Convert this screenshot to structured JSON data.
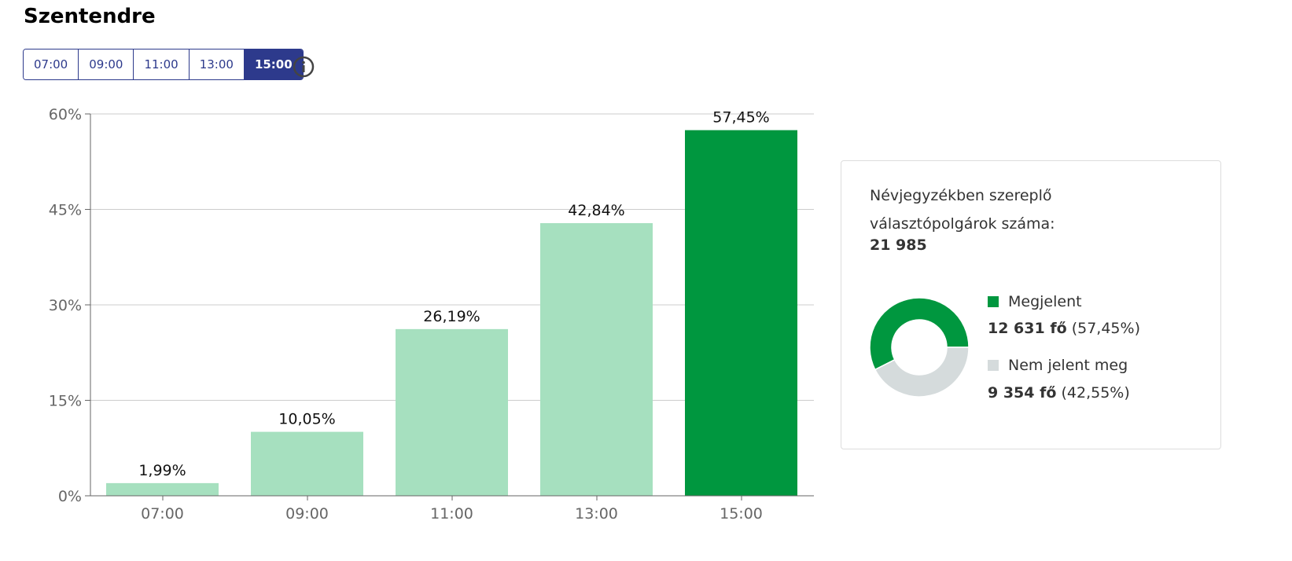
{
  "title": "Szentendre",
  "tabs": [
    "07:00",
    "09:00",
    "11:00",
    "13:00",
    "15:00"
  ],
  "active_tab": "15:00",
  "colors": {
    "accent": "#2d3a8c",
    "bar_light": "#a6e0bf",
    "bar_active": "#00973f",
    "not_voted": "#d5dbdc"
  },
  "chart_data": {
    "type": "bar",
    "categories": [
      "07:00",
      "09:00",
      "11:00",
      "13:00",
      "15:00"
    ],
    "values": [
      1.99,
      10.05,
      26.19,
      42.84,
      57.45
    ],
    "value_labels": [
      "1,99%",
      "10,05%",
      "26,19%",
      "42,84%",
      "57,45%"
    ],
    "yticks": [
      0,
      15,
      30,
      45,
      60
    ],
    "ytick_labels": [
      "0%",
      "15%",
      "30%",
      "45%",
      "60%"
    ],
    "ylim": [
      0,
      60
    ],
    "grid": true,
    "highlighted": "15:00"
  },
  "card": {
    "label": "Névjegyzékben szereplő választópolgárok száma:",
    "total": "21 985",
    "donut": {
      "type": "pie",
      "values": [
        57.45,
        42.55
      ]
    },
    "legend": [
      {
        "name": "Megjelent",
        "count": "12 631 fő",
        "pct": "(57,45%)"
      },
      {
        "name": "Nem jelent meg",
        "count": "9 354 fő",
        "pct": "(42,55%)"
      }
    ]
  }
}
